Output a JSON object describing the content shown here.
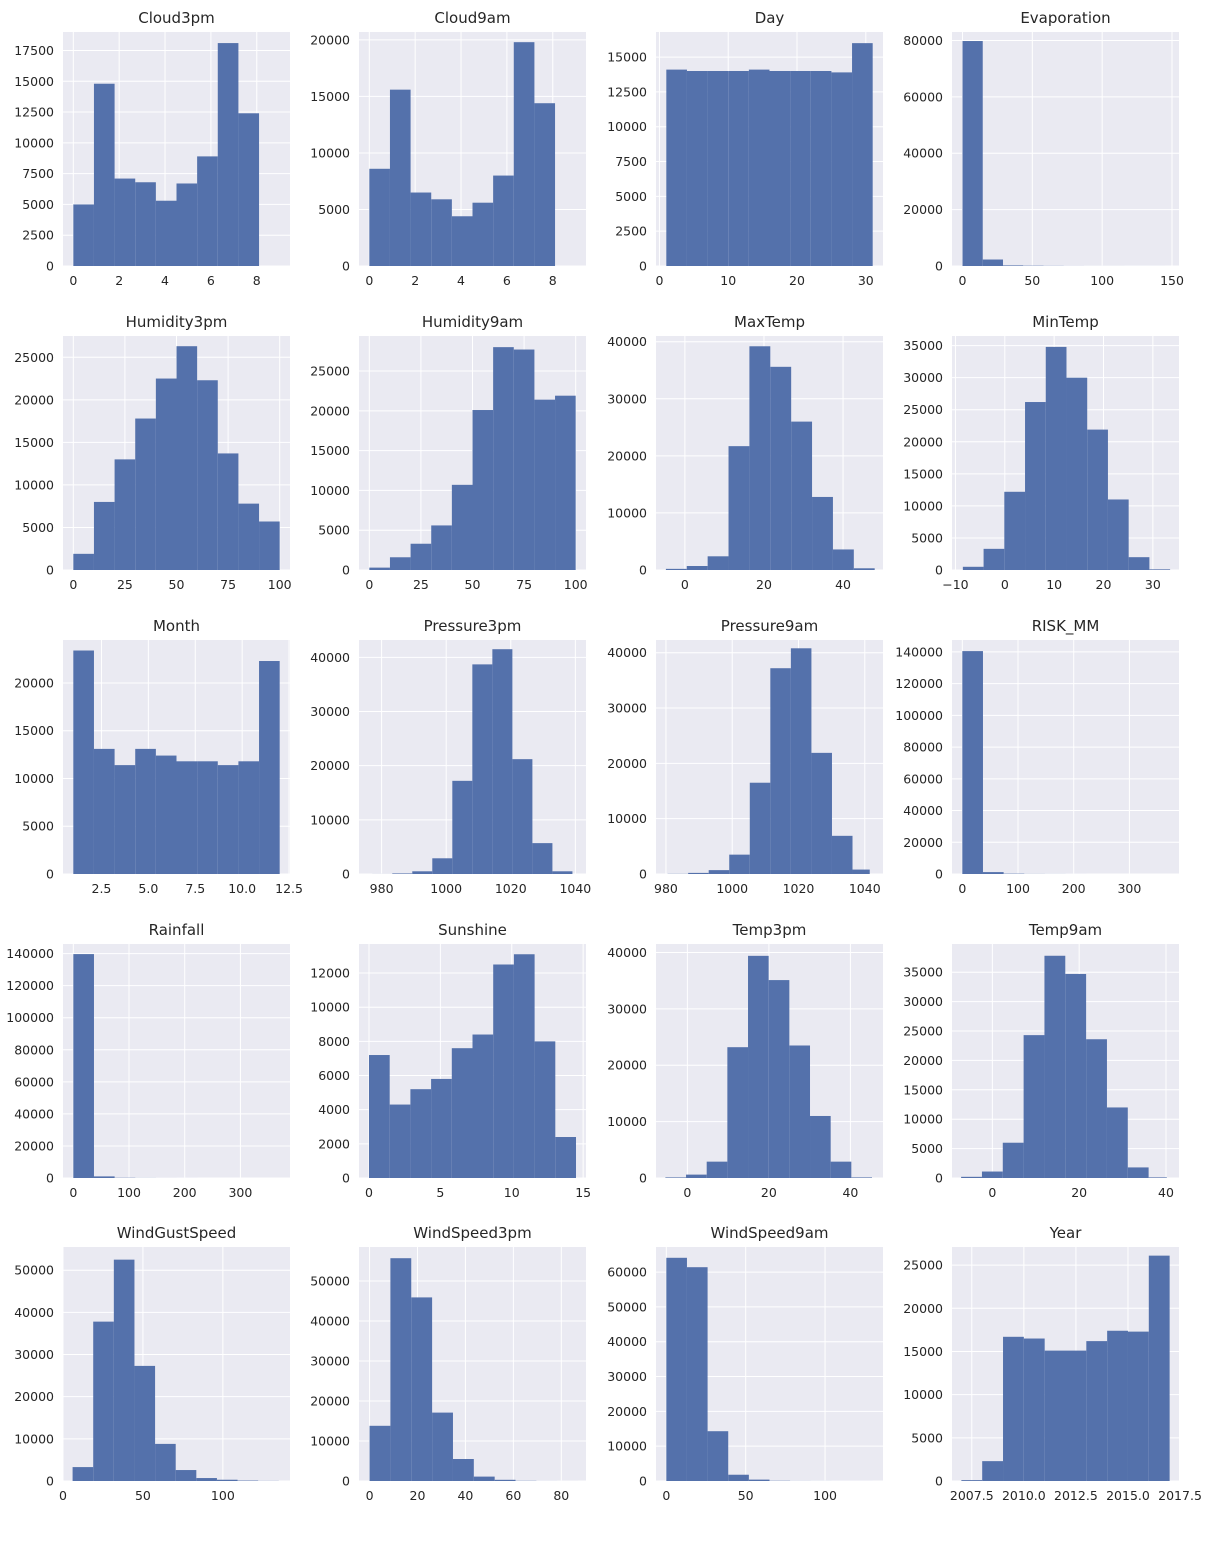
{
  "figure": {
    "background": "#ffffff",
    "bar_color": "#5471ab",
    "plot_bg": "#eaeaf2",
    "grid_color": "#ffffff",
    "text_color": "#262626"
  },
  "chart_data": [
    {
      "type": "bar",
      "title": "Cloud3pm",
      "xlim": [
        -0.45,
        9.45
      ],
      "ylim": [
        0,
        19000
      ],
      "xticks": [
        0,
        2,
        4,
        6,
        8
      ],
      "xtick_labels": [
        "0",
        "2",
        "4",
        "6",
        "8"
      ],
      "yticks": [
        0,
        2500,
        5000,
        7500,
        10000,
        12500,
        15000,
        17500
      ],
      "ytick_labels": [
        "0",
        "2500",
        "5000",
        "7500",
        "10000",
        "12500",
        "15000",
        "17500"
      ],
      "bin_edges": [
        0,
        0.9,
        1.8,
        2.7,
        3.6,
        4.5,
        5.4,
        6.3,
        7.2,
        8.1
      ],
      "counts": [
        5000,
        14800,
        7100,
        6800,
        5300,
        6700,
        8900,
        18100,
        12400
      ]
    },
    {
      "type": "bar",
      "title": "Cloud9am",
      "xlim": [
        -0.45,
        9.45
      ],
      "ylim": [
        0,
        20700
      ],
      "xticks": [
        0,
        2,
        4,
        6,
        8
      ],
      "xtick_labels": [
        "0",
        "2",
        "4",
        "6",
        "8"
      ],
      "yticks": [
        0,
        5000,
        10000,
        15000,
        20000
      ],
      "ytick_labels": [
        "0",
        "5000",
        "10000",
        "15000",
        "20000"
      ],
      "bin_edges": [
        0,
        0.9,
        1.8,
        2.7,
        3.6,
        4.5,
        5.4,
        6.3,
        7.2,
        8.1
      ],
      "counts": [
        8600,
        15600,
        6500,
        5900,
        4400,
        5600,
        8000,
        19800,
        14400
      ]
    },
    {
      "type": "bar",
      "title": "Day",
      "xlim": [
        -0.5,
        32.5
      ],
      "ylim": [
        0,
        16800
      ],
      "xticks": [
        0,
        10,
        20,
        30
      ],
      "xtick_labels": [
        "0",
        "10",
        "20",
        "30"
      ],
      "yticks": [
        0,
        2500,
        5000,
        7500,
        10000,
        12500,
        15000
      ],
      "ytick_labels": [
        "0",
        "2500",
        "5000",
        "7500",
        "10000",
        "12500",
        "15000"
      ],
      "bin_edges": [
        1,
        4,
        7,
        10,
        13,
        16,
        19,
        22,
        25,
        28,
        31
      ],
      "counts": [
        14100,
        14000,
        14000,
        14000,
        14100,
        14000,
        14000,
        14000,
        13900,
        16000
      ]
    },
    {
      "type": "bar",
      "title": "Evaporation",
      "xlim": [
        -7.5,
        155
      ],
      "ylim": [
        0,
        83000
      ],
      "xticks": [
        0,
        50,
        100,
        150
      ],
      "xtick_labels": [
        "0",
        "50",
        "100",
        "150"
      ],
      "yticks": [
        0,
        20000,
        40000,
        60000,
        80000
      ],
      "ytick_labels": [
        "0",
        "20000",
        "40000",
        "60000",
        "80000"
      ],
      "bin_edges": [
        0,
        14.5,
        29,
        43.5,
        58,
        72.5,
        87,
        101.5,
        116,
        130.5,
        145
      ],
      "counts": [
        79800,
        2300,
        200,
        100,
        50,
        20,
        10,
        10,
        5,
        5
      ]
    },
    {
      "type": "bar",
      "title": "Humidity3pm",
      "xlim": [
        -5,
        105
      ],
      "ylim": [
        0,
        27500
      ],
      "xticks": [
        0,
        25,
        50,
        75,
        100
      ],
      "xtick_labels": [
        "0",
        "25",
        "50",
        "75",
        "100"
      ],
      "yticks": [
        0,
        5000,
        10000,
        15000,
        20000,
        25000
      ],
      "ytick_labels": [
        "0",
        "5000",
        "10000",
        "15000",
        "20000",
        "25000"
      ],
      "bin_edges": [
        0,
        10,
        20,
        30,
        40,
        50,
        60,
        70,
        80,
        90,
        100
      ],
      "counts": [
        1900,
        8000,
        13000,
        17800,
        22500,
        26300,
        22300,
        13700,
        7800,
        5700
      ]
    },
    {
      "type": "bar",
      "title": "Humidity9am",
      "xlim": [
        -5,
        105
      ],
      "ylim": [
        0,
        29400
      ],
      "xticks": [
        0,
        25,
        50,
        75,
        100
      ],
      "xtick_labels": [
        "0",
        "25",
        "50",
        "75",
        "100"
      ],
      "yticks": [
        0,
        5000,
        10000,
        15000,
        20000,
        25000
      ],
      "ytick_labels": [
        "0",
        "5000",
        "10000",
        "15000",
        "20000",
        "25000"
      ],
      "bin_edges": [
        0,
        10,
        20,
        30,
        40,
        50,
        60,
        70,
        80,
        90,
        100
      ],
      "counts": [
        300,
        1600,
        3300,
        5600,
        10700,
        20100,
        28000,
        27700,
        21400,
        21900
      ]
    },
    {
      "type": "bar",
      "title": "MaxTemp",
      "xlim": [
        -7.3,
        50.1
      ],
      "ylim": [
        0,
        41000
      ],
      "xticks": [
        0,
        20,
        40
      ],
      "xtick_labels": [
        "0",
        "20",
        "40"
      ],
      "yticks": [
        0,
        10000,
        20000,
        30000,
        40000
      ],
      "ytick_labels": [
        "0",
        "10000",
        "20000",
        "30000",
        "40000"
      ],
      "bin_edges": [
        -4.8,
        0.48,
        5.76,
        11.04,
        16.32,
        21.6,
        26.88,
        32.16,
        37.44,
        42.72,
        48
      ],
      "counts": [
        200,
        700,
        2400,
        21700,
        39200,
        35600,
        26000,
        12800,
        3600,
        300
      ]
    },
    {
      "type": "bar",
      "title": "MinTemp",
      "xlim": [
        -10.7,
        35.3
      ],
      "ylim": [
        0,
        36500
      ],
      "xticks": [
        -10,
        0,
        10,
        20,
        30
      ],
      "xtick_labels": [
        "−10",
        "0",
        "10",
        "20",
        "30"
      ],
      "yticks": [
        0,
        5000,
        10000,
        15000,
        20000,
        25000,
        30000,
        35000
      ],
      "ytick_labels": [
        "0",
        "5000",
        "10000",
        "15000",
        "20000",
        "25000",
        "30000",
        "35000"
      ],
      "bin_edges": [
        -8.5,
        -4.3,
        -0.1,
        4.1,
        8.3,
        12.5,
        16.7,
        20.9,
        25.1,
        29.3,
        33.5
      ],
      "counts": [
        500,
        3300,
        12200,
        26200,
        34800,
        30000,
        21900,
        11000,
        2000,
        100
      ]
    },
    {
      "type": "bar",
      "title": "Month",
      "xlim": [
        0.45,
        12.55
      ],
      "ylim": [
        0,
        24500
      ],
      "xticks": [
        2.5,
        5.0,
        7.5,
        10.0,
        12.5
      ],
      "xtick_labels": [
        "2.5",
        "5.0",
        "7.5",
        "10.0",
        "12.5"
      ],
      "yticks": [
        0,
        5000,
        10000,
        15000,
        20000
      ],
      "ytick_labels": [
        "0",
        "5000",
        "10000",
        "15000",
        "20000"
      ],
      "bin_edges": [
        1,
        2.1,
        3.2,
        4.3,
        5.4,
        6.5,
        7.6,
        8.7,
        9.8,
        10.9,
        12
      ],
      "counts": [
        23400,
        13100,
        11400,
        13100,
        12400,
        11800,
        11800,
        11400,
        11800,
        22300
      ]
    },
    {
      "type": "bar",
      "title": "Pressure3pm",
      "xlim": [
        973,
        1043.3
      ],
      "ylim": [
        0,
        43200
      ],
      "xticks": [
        980,
        1000,
        1020,
        1040
      ],
      "xtick_labels": [
        "980",
        "1000",
        "1020",
        "1040"
      ],
      "yticks": [
        0,
        10000,
        20000,
        30000,
        40000
      ],
      "ytick_labels": [
        "0",
        "10000",
        "20000",
        "30000",
        "40000"
      ],
      "bin_edges": [
        977.1,
        983.3,
        989.5,
        995.7,
        1001.9,
        1008.1,
        1014.3,
        1020.5,
        1026.7,
        1032.9,
        1039.1
      ],
      "counts": [
        10,
        100,
        500,
        2900,
        17200,
        38700,
        41500,
        21200,
        5700,
        500
      ]
    },
    {
      "type": "bar",
      "title": "Pressure9am",
      "xlim": [
        977,
        1045.5
      ],
      "ylim": [
        0,
        42300
      ],
      "xticks": [
        980,
        1000,
        1020,
        1040
      ],
      "xtick_labels": [
        "980",
        "1000",
        "1020",
        "1040"
      ],
      "yticks": [
        0,
        10000,
        20000,
        30000,
        40000
      ],
      "ytick_labels": [
        "0",
        "10000",
        "20000",
        "30000",
        "40000"
      ],
      "bin_edges": [
        980.5,
        986.7,
        992.9,
        999.1,
        1005.3,
        1011.5,
        1017.7,
        1023.9,
        1030.1,
        1036.3,
        1041.5
      ],
      "counts": [
        30,
        200,
        700,
        3500,
        16500,
        37200,
        40800,
        21900,
        6900,
        800
      ]
    },
    {
      "type": "bar",
      "title": "RISK_MM",
      "xlim": [
        -18.5,
        389
      ],
      "ylim": [
        0,
        147500
      ],
      "xticks": [
        0,
        100,
        200,
        300
      ],
      "xtick_labels": [
        "0",
        "100",
        "200",
        "300"
      ],
      "yticks": [
        0,
        20000,
        40000,
        60000,
        80000,
        100000,
        120000,
        140000
      ],
      "ytick_labels": [
        "0",
        "20000",
        "40000",
        "60000",
        "80000",
        "100000",
        "120000",
        "140000"
      ],
      "bin_edges": [
        0,
        37.1,
        74.2,
        111.3,
        148.4,
        185.5,
        222.6,
        259.7,
        296.8,
        333.9,
        371
      ],
      "counts": [
        140500,
        1200,
        200,
        60,
        30,
        10,
        5,
        5,
        2,
        2
      ]
    },
    {
      "type": "bar",
      "title": "Rainfall",
      "xlim": [
        -18.5,
        389
      ],
      "ylim": [
        0,
        146000
      ],
      "xticks": [
        0,
        100,
        200,
        300
      ],
      "xtick_labels": [
        "0",
        "100",
        "200",
        "300"
      ],
      "yticks": [
        0,
        20000,
        40000,
        60000,
        80000,
        100000,
        120000,
        140000
      ],
      "ytick_labels": [
        "0",
        "20000",
        "40000",
        "60000",
        "80000",
        "100000",
        "120000",
        "140000"
      ],
      "bin_edges": [
        0,
        37.1,
        74.2,
        111.3,
        148.4,
        185.5,
        222.6,
        259.7,
        296.8,
        333.9,
        371
      ],
      "counts": [
        139700,
        1000,
        150,
        50,
        20,
        10,
        5,
        5,
        2,
        2
      ]
    },
    {
      "type": "bar",
      "title": "Sunshine",
      "xlim": [
        -0.7,
        15.2
      ],
      "ylim": [
        0,
        13700
      ],
      "xticks": [
        0,
        5,
        10,
        15
      ],
      "xtick_labels": [
        "0",
        "5",
        "10",
        "15"
      ],
      "yticks": [
        0,
        2000,
        4000,
        6000,
        8000,
        10000,
        12000
      ],
      "ytick_labels": [
        "0",
        "2000",
        "4000",
        "6000",
        "8000",
        "10000",
        "12000"
      ],
      "bin_edges": [
        0,
        1.45,
        2.9,
        4.35,
        5.8,
        7.25,
        8.7,
        10.15,
        11.6,
        13.05,
        14.5
      ],
      "counts": [
        7200,
        4300,
        5200,
        5800,
        7600,
        8400,
        12500,
        13100,
        8000,
        2400
      ]
    },
    {
      "type": "bar",
      "title": "Temp3pm",
      "xlim": [
        -7.7,
        48
      ],
      "ylim": [
        0,
        41500
      ],
      "xticks": [
        0,
        20,
        40
      ],
      "xtick_labels": [
        "0",
        "20",
        "40"
      ],
      "yticks": [
        0,
        10000,
        20000,
        30000,
        40000
      ],
      "ytick_labels": [
        "0",
        "10000",
        "20000",
        "30000",
        "40000"
      ],
      "bin_edges": [
        -5.4,
        -0.33,
        4.74,
        9.81,
        14.88,
        19.95,
        25.02,
        30.09,
        35.16,
        40.23,
        45.3
      ],
      "counts": [
        100,
        600,
        2900,
        23200,
        39400,
        35100,
        23500,
        11000,
        2900,
        100
      ]
    },
    {
      "type": "bar",
      "title": "Temp9am",
      "xlim": [
        -9.3,
        43
      ],
      "ylim": [
        0,
        39800
      ],
      "xticks": [
        0,
        20,
        40
      ],
      "xtick_labels": [
        "0",
        "20",
        "40"
      ],
      "yticks": [
        0,
        5000,
        10000,
        15000,
        20000,
        25000,
        30000,
        35000
      ],
      "ytick_labels": [
        "0",
        "5000",
        "10000",
        "15000",
        "20000",
        "25000",
        "30000",
        "35000"
      ],
      "bin_edges": [
        -7.2,
        -2.4,
        2.4,
        7.2,
        12,
        16.8,
        21.6,
        26.4,
        31.2,
        36,
        40.2
      ],
      "counts": [
        200,
        1100,
        6000,
        24300,
        37800,
        34700,
        23600,
        12000,
        1800,
        100
      ]
    },
    {
      "type": "bar",
      "title": "WindGustSpeed",
      "xlim": [
        0,
        142
      ],
      "ylim": [
        0,
        55500
      ],
      "xticks": [
        0,
        50,
        100
      ],
      "xtick_labels": [
        "0",
        "50",
        "100"
      ],
      "yticks": [
        0,
        10000,
        20000,
        30000,
        40000,
        50000
      ],
      "ytick_labels": [
        "0",
        "10000",
        "20000",
        "30000",
        "40000",
        "50000"
      ],
      "bin_edges": [
        6,
        18.9,
        31.8,
        44.7,
        57.6,
        70.5,
        83.4,
        96.3,
        109.2,
        122.1,
        135
      ],
      "counts": [
        3300,
        37800,
        52500,
        27300,
        8800,
        2600,
        700,
        300,
        100,
        30
      ]
    },
    {
      "type": "bar",
      "title": "WindSpeed3pm",
      "xlim": [
        -4.4,
        90.3
      ],
      "ylim": [
        0,
        58500
      ],
      "xticks": [
        0,
        20,
        40,
        60,
        80
      ],
      "xtick_labels": [
        "0",
        "20",
        "40",
        "60",
        "80"
      ],
      "yticks": [
        0,
        10000,
        20000,
        30000,
        40000,
        50000
      ],
      "ytick_labels": [
        "0",
        "10000",
        "20000",
        "30000",
        "40000",
        "50000"
      ],
      "bin_edges": [
        0,
        8.7,
        17.4,
        26.1,
        34.8,
        43.5,
        52.2,
        60.9,
        69.6,
        78.3,
        87
      ],
      "counts": [
        13800,
        55700,
        45900,
        17100,
        5500,
        1100,
        300,
        50,
        10,
        5
      ]
    },
    {
      "type": "bar",
      "title": "WindSpeed9am",
      "xlim": [
        -6.5,
        136.5
      ],
      "ylim": [
        0,
        67200
      ],
      "xticks": [
        0,
        50,
        100
      ],
      "xtick_labels": [
        "0",
        "50",
        "100"
      ],
      "yticks": [
        0,
        10000,
        20000,
        30000,
        40000,
        50000,
        60000
      ],
      "ytick_labels": [
        "0",
        "10000",
        "20000",
        "30000",
        "40000",
        "50000",
        "60000"
      ],
      "bin_edges": [
        0,
        13,
        26,
        39,
        52,
        65,
        78,
        91,
        104,
        117,
        130
      ],
      "counts": [
        64100,
        61400,
        14300,
        1800,
        400,
        70,
        20,
        10,
        5,
        5
      ]
    },
    {
      "type": "bar",
      "title": "Year",
      "xlim": [
        2006.55,
        2017.45
      ],
      "ylim": [
        0,
        27100
      ],
      "xticks": [
        2007.5,
        2010.0,
        2012.5,
        2015.0,
        2017.5
      ],
      "xtick_labels": [
        "2007.5",
        "2010.0",
        "2012.5",
        "2015.0",
        "2017.5"
      ],
      "yticks": [
        0,
        5000,
        10000,
        15000,
        20000,
        25000
      ],
      "ytick_labels": [
        "0",
        "5000",
        "10000",
        "15000",
        "20000",
        "25000"
      ],
      "bin_edges": [
        2007,
        2008,
        2009,
        2010,
        2011,
        2012,
        2013,
        2014,
        2015,
        2016,
        2017
      ],
      "counts": [
        100,
        2300,
        16700,
        16500,
        15100,
        15100,
        16200,
        17400,
        17300,
        26100
      ]
    }
  ]
}
